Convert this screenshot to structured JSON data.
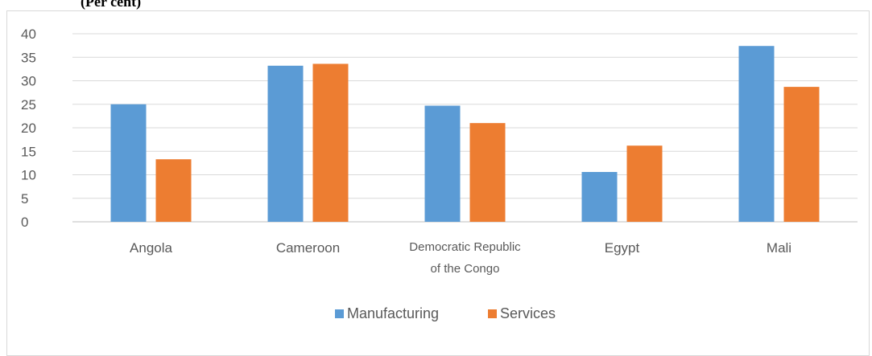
{
  "heading": "(Per cent)",
  "colors": {
    "Manufacturing": "#5b9bd5",
    "Services": "#ed7d31",
    "grid": "#d9d9d9",
    "axis": "#bfbfbf",
    "text": "#595959"
  },
  "chart_data": {
    "type": "bar",
    "categories": [
      "Angola",
      "Cameroon",
      "Democratic Republic of the Congo",
      "Egypt",
      "Mali"
    ],
    "series": [
      {
        "name": "Manufacturing",
        "values": [
          25,
          33.2,
          24.7,
          10.6,
          37.4
        ]
      },
      {
        "name": "Services",
        "values": [
          13.3,
          33.6,
          21,
          16.2,
          28.7
        ]
      }
    ],
    "ylim": [
      0,
      40
    ],
    "yticks": [
      "0",
      "5",
      "10",
      "15",
      "20",
      "25",
      "30",
      "35",
      "40"
    ],
    "grid": true,
    "legend": "bottom"
  }
}
